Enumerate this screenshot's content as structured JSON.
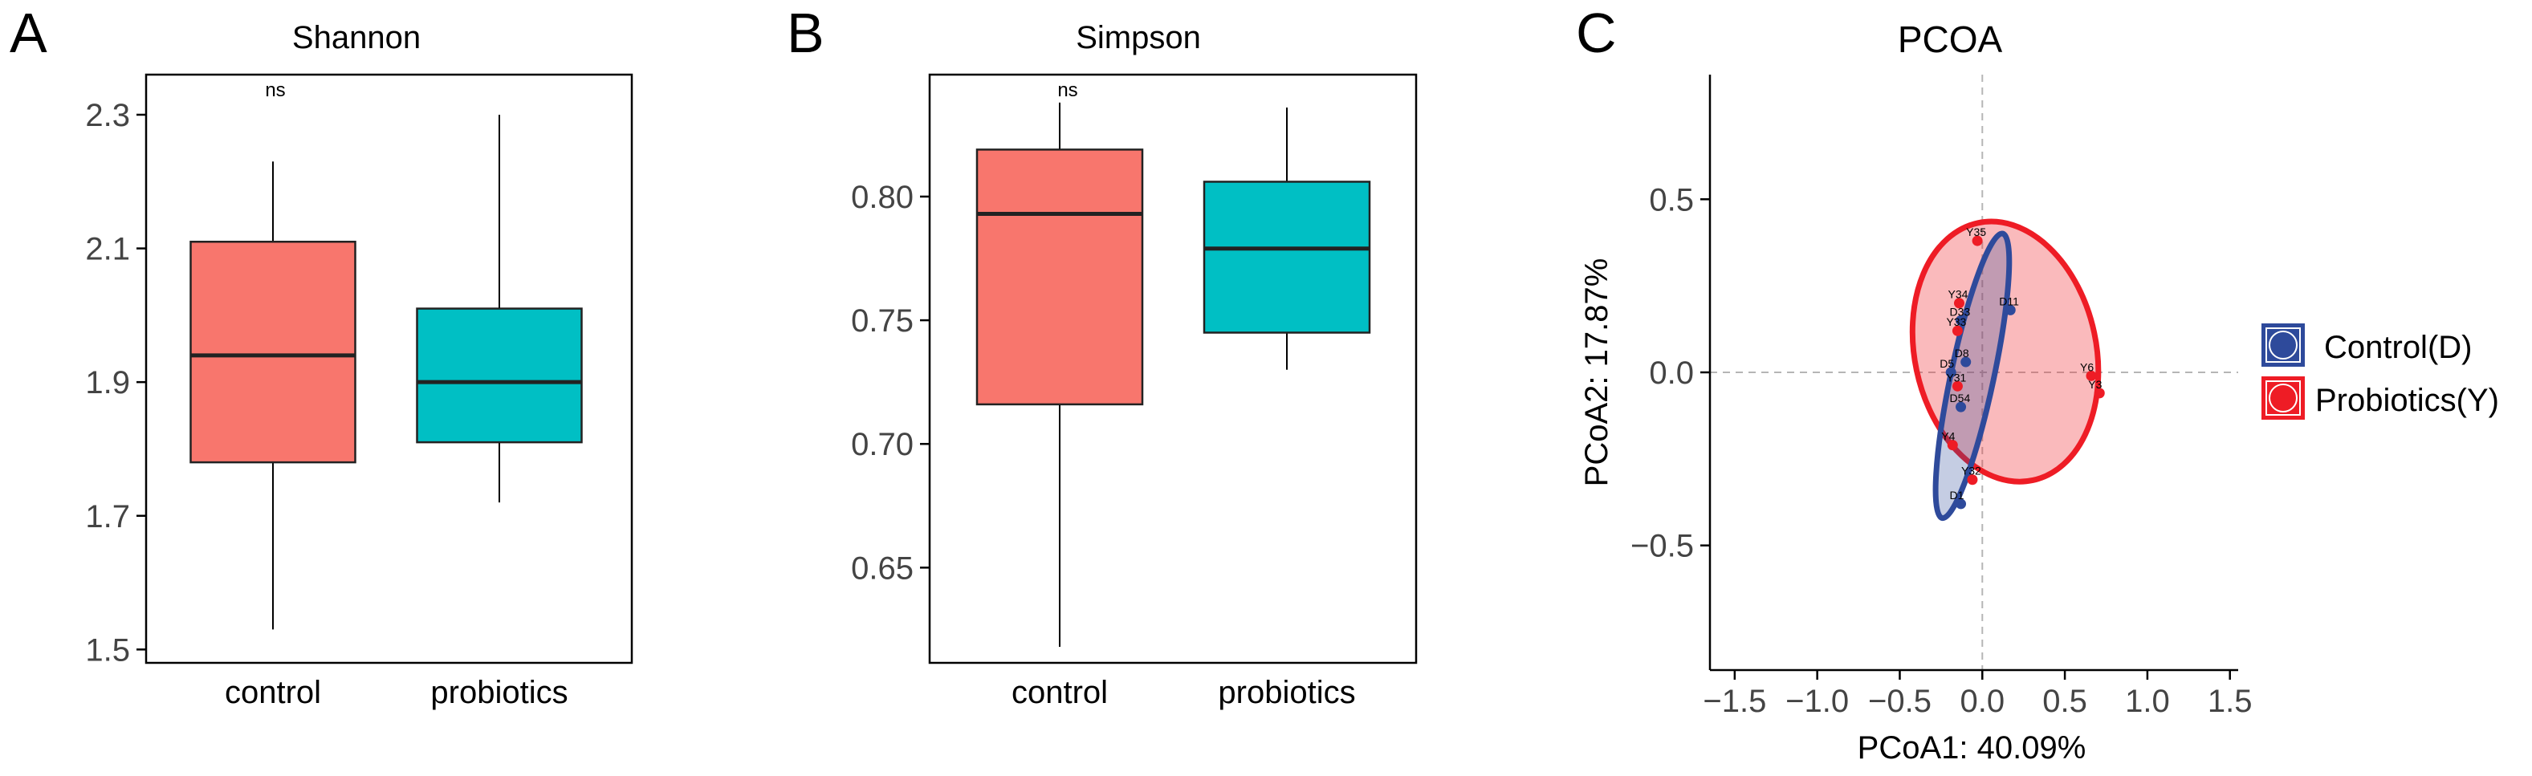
{
  "chart_data": [
    {
      "panel": "A",
      "type": "box",
      "title": "Shannon",
      "xlabel": "",
      "ylabel": "",
      "ylim": [
        1.48,
        2.36
      ],
      "yticks": [
        1.5,
        1.7,
        1.9,
        2.1,
        2.3
      ],
      "ytick_labels": [
        "1.5",
        "1.7",
        "1.9",
        "2.1",
        "2.3"
      ],
      "categories": [
        "control",
        "probiotics"
      ],
      "colors": [
        "#F8766D",
        "#00BFC4"
      ],
      "boxes": [
        {
          "category": "control",
          "min": 1.53,
          "q1": 1.78,
          "median": 1.94,
          "q3": 2.11,
          "max": 2.23
        },
        {
          "category": "probiotics",
          "min": 1.72,
          "q1": 1.81,
          "median": 1.9,
          "q3": 2.01,
          "max": 2.3
        }
      ],
      "annotation": "ns"
    },
    {
      "panel": "B",
      "type": "box",
      "title": "Simpson",
      "xlabel": "",
      "ylabel": "",
      "ylim": [
        0.6115,
        0.8493
      ],
      "yticks": [
        0.65,
        0.7,
        0.75,
        0.8
      ],
      "ytick_labels": [
        "0.65",
        "0.70",
        "0.75",
        "0.80"
      ],
      "categories": [
        "control",
        "probiotics"
      ],
      "colors": [
        "#F8766D",
        "#00BFC4"
      ],
      "boxes": [
        {
          "category": "control",
          "min": 0.618,
          "q1": 0.716,
          "median": 0.793,
          "q3": 0.819,
          "max": 0.838
        },
        {
          "category": "probiotics",
          "min": 0.73,
          "q1": 0.745,
          "median": 0.779,
          "q3": 0.806,
          "max": 0.836
        }
      ],
      "annotation": "ns"
    },
    {
      "panel": "C",
      "type": "scatter",
      "title": "PCOA",
      "xlabel": "PCoA1: 40.09%",
      "ylabel": "PCoA2: 17.87%",
      "xlim": [
        -1.65,
        1.55
      ],
      "ylim": [
        -0.86,
        0.86
      ],
      "xticks": [
        -1.5,
        -1.0,
        -0.5,
        0.0,
        0.5,
        1.0,
        1.5
      ],
      "xtick_labels": [
        "−1.5",
        "−1.0",
        "−0.5",
        "0.0",
        "0.5",
        "1.0",
        "1.5"
      ],
      "yticks": [
        -0.5,
        0.0,
        0.5
      ],
      "ytick_labels": [
        "−0.5",
        "0.0",
        "0.5"
      ],
      "groups": [
        {
          "name": "Control(D)",
          "color": "#2E4A9B",
          "fill": "rgba(46,74,155,0.28)"
        },
        {
          "name": "Probiotics(Y)",
          "color": "#EE1C25",
          "fill": "rgba(240,40,48,0.32)"
        }
      ],
      "points": [
        {
          "label": "Y35",
          "group": 1,
          "x": -0.03,
          "y": 0.38
        },
        {
          "label": "D11",
          "group": 0,
          "x": 0.17,
          "y": 0.18
        },
        {
          "label": "Y34",
          "group": 1,
          "x": -0.14,
          "y": 0.2
        },
        {
          "label": "D33",
          "group": 0,
          "x": -0.13,
          "y": 0.15
        },
        {
          "label": "Y33",
          "group": 1,
          "x": -0.15,
          "y": 0.12
        },
        {
          "label": "D8",
          "group": 0,
          "x": -0.1,
          "y": 0.03
        },
        {
          "label": "Y6",
          "group": 1,
          "x": 0.66,
          "y": -0.01
        },
        {
          "label": "Y3",
          "group": 1,
          "x": 0.71,
          "y": -0.06
        },
        {
          "label": "D5",
          "group": 0,
          "x": -0.19,
          "y": 0.0
        },
        {
          "label": "Y31",
          "group": 1,
          "x": -0.15,
          "y": -0.04
        },
        {
          "label": "D54",
          "group": 0,
          "x": -0.13,
          "y": -0.1
        },
        {
          "label": "Y4",
          "group": 1,
          "x": -0.18,
          "y": -0.21
        },
        {
          "label": "Y32",
          "group": 1,
          "x": -0.06,
          "y": -0.31
        },
        {
          "label": "D1",
          "group": 0,
          "x": -0.13,
          "y": -0.38
        }
      ],
      "ellipses": [
        {
          "group": 1,
          "cx": 0.14,
          "cy": 0.06,
          "rx": 0.55,
          "ry": 0.38,
          "angle_deg": -12
        },
        {
          "group": 0,
          "cx": -0.06,
          "cy": -0.01,
          "rx": 0.13,
          "ry": 0.42,
          "angle_deg": 12
        }
      ]
    }
  ],
  "panel_letters": [
    "A",
    "B",
    "C"
  ],
  "legend": {
    "items": [
      {
        "label": "Control(D)",
        "color": "#2E4A9B"
      },
      {
        "label": "Probiotics(Y)",
        "color": "#EE1C25"
      }
    ]
  }
}
